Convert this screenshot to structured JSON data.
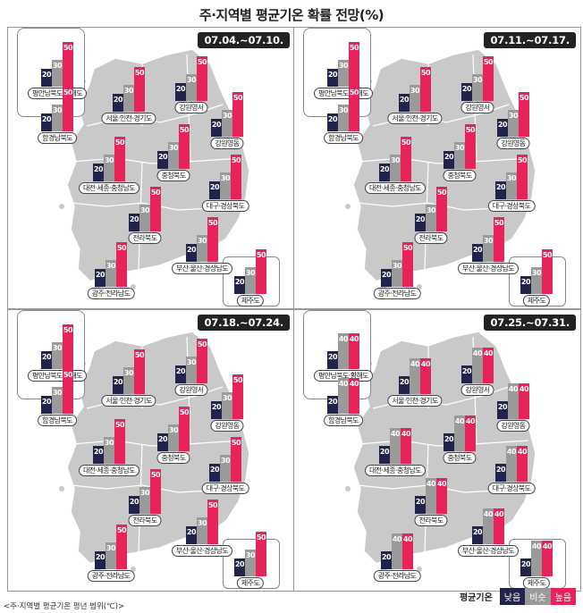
{
  "title": "주·지역별 평균기온 확률 전망(%)",
  "legend": {
    "title": "평균기온",
    "items": [
      {
        "label": "낮음",
        "color": "#22234a"
      },
      {
        "label": "비슷",
        "color": "#9a9a9a"
      },
      {
        "label": "높음",
        "color": "#e6245a"
      }
    ]
  },
  "footnote": "<주·지역별 평균기온 평년 범위(℃)>",
  "panels": [
    {
      "period": "07.04.~07.10.",
      "regions": [
        {
          "name": "평안남북도·황해도",
          "low": 20,
          "mid": 30,
          "high": 50
        },
        {
          "name": "함경남북도",
          "low": 20,
          "mid": 30,
          "high": 50
        },
        {
          "name": "서울·인천·경기도",
          "low": 20,
          "mid": 30,
          "high": 50
        },
        {
          "name": "강원영서",
          "low": 20,
          "mid": 30,
          "high": 50
        },
        {
          "name": "강원영동",
          "low": 20,
          "mid": 30,
          "high": 50
        },
        {
          "name": "충청북도",
          "low": 20,
          "mid": 30,
          "high": 50
        },
        {
          "name": "대전·세종·충청남도",
          "low": 20,
          "mid": 30,
          "high": 50
        },
        {
          "name": "대구·경상북도",
          "low": 20,
          "mid": 30,
          "high": 50
        },
        {
          "name": "전라북도",
          "low": 20,
          "mid": 30,
          "high": 50
        },
        {
          "name": "부산·울산·경상남도",
          "low": 20,
          "mid": 30,
          "high": 50
        },
        {
          "name": "광주·전라남도",
          "low": 20,
          "mid": 30,
          "high": 50
        },
        {
          "name": "제주도",
          "low": 20,
          "mid": 30,
          "high": 50
        }
      ]
    },
    {
      "period": "07.11.~07.17.",
      "regions": [
        {
          "name": "평안남북도·황해도",
          "low": 20,
          "mid": 30,
          "high": 50
        },
        {
          "name": "함경남북도",
          "low": 20,
          "mid": 30,
          "high": 50
        },
        {
          "name": "서울·인천·경기도",
          "low": 20,
          "mid": 30,
          "high": 50
        },
        {
          "name": "강원영서",
          "low": 20,
          "mid": 30,
          "high": 50
        },
        {
          "name": "강원영동",
          "low": 20,
          "mid": 30,
          "high": 50
        },
        {
          "name": "충청북도",
          "low": 20,
          "mid": 30,
          "high": 50
        },
        {
          "name": "대전·세종·충청남도",
          "low": 20,
          "mid": 30,
          "high": 50
        },
        {
          "name": "대구·경상북도",
          "low": 20,
          "mid": 30,
          "high": 50
        },
        {
          "name": "전라북도",
          "low": 20,
          "mid": 30,
          "high": 50
        },
        {
          "name": "부산·울산·경상남도",
          "low": 20,
          "mid": 30,
          "high": 50
        },
        {
          "name": "광주·전라남도",
          "low": 20,
          "mid": 30,
          "high": 50
        },
        {
          "name": "제주도",
          "low": 20,
          "mid": 30,
          "high": 50
        }
      ]
    },
    {
      "period": "07.18.~07.24.",
      "regions": [
        {
          "name": "평안남북도·황해도",
          "low": 20,
          "mid": 30,
          "high": 50
        },
        {
          "name": "함경남북도",
          "low": 20,
          "mid": 30,
          "high": 50
        },
        {
          "name": "서울·인천·경기도",
          "low": 20,
          "mid": 30,
          "high": 50
        },
        {
          "name": "강원영서",
          "low": 20,
          "mid": 30,
          "high": 50
        },
        {
          "name": "강원영동",
          "low": 20,
          "mid": 30,
          "high": 50
        },
        {
          "name": "충청북도",
          "low": 20,
          "mid": 30,
          "high": 50
        },
        {
          "name": "대전·세종·충청남도",
          "low": 20,
          "mid": 30,
          "high": 50
        },
        {
          "name": "대구·경상북도",
          "low": 20,
          "mid": 30,
          "high": 50
        },
        {
          "name": "전라북도",
          "low": 20,
          "mid": 30,
          "high": 50
        },
        {
          "name": "부산·울산·경상남도",
          "low": 20,
          "mid": 30,
          "high": 50
        },
        {
          "name": "광주·전라남도",
          "low": 20,
          "mid": 30,
          "high": 50
        },
        {
          "name": "제주도",
          "low": 20,
          "mid": 30,
          "high": 50
        }
      ]
    },
    {
      "period": "07.25.~07.31.",
      "regions": [
        {
          "name": "평안남북도·황해도",
          "low": 20,
          "mid": 40,
          "high": 40
        },
        {
          "name": "함경남북도",
          "low": 20,
          "mid": 40,
          "high": 40
        },
        {
          "name": "서울·인천·경기도",
          "low": 20,
          "mid": 40,
          "high": 40
        },
        {
          "name": "강원영서",
          "low": 20,
          "mid": 40,
          "high": 40
        },
        {
          "name": "강원영동",
          "low": 20,
          "mid": 40,
          "high": 40
        },
        {
          "name": "충청북도",
          "low": 20,
          "mid": 40,
          "high": 40
        },
        {
          "name": "대전·세종·충청남도",
          "low": 20,
          "mid": 40,
          "high": 40
        },
        {
          "name": "대구·경상북도",
          "low": 20,
          "mid": 40,
          "high": 40
        },
        {
          "name": "전라북도",
          "low": 20,
          "mid": 40,
          "high": 40
        },
        {
          "name": "부산·울산·경상남도",
          "low": 20,
          "mid": 40,
          "high": 40
        },
        {
          "name": "광주·전라남도",
          "low": 20,
          "mid": 40,
          "high": 40
        },
        {
          "name": "제주도",
          "low": 20,
          "mid": 40,
          "high": 40
        }
      ]
    }
  ]
}
